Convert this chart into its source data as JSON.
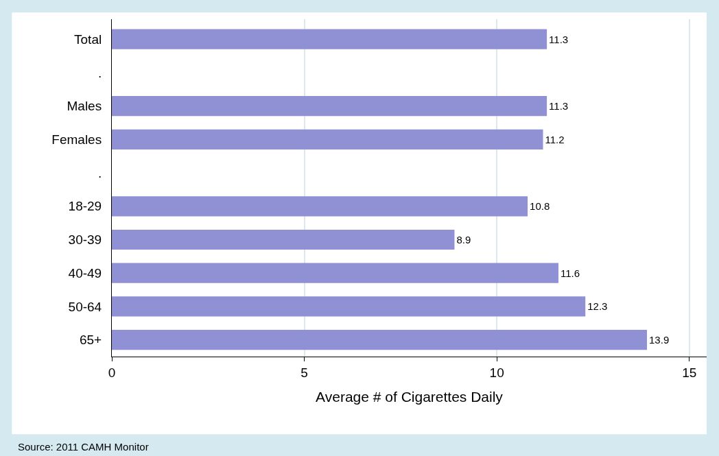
{
  "chart_data": {
    "type": "bar",
    "orientation": "horizontal",
    "categories": [
      "Total",
      ".",
      "Males",
      "Females",
      ".",
      "18-29",
      "30-39",
      "40-49",
      "50-64",
      "65+"
    ],
    "values": [
      11.3,
      null,
      11.3,
      11.2,
      null,
      10.8,
      8.9,
      11.6,
      12.3,
      13.9
    ],
    "color": "#9090d4",
    "data_labels": true,
    "xlabel": "Average # of Cigarettes Daily",
    "xlim": [
      0,
      15.45
    ],
    "xticks": [
      0,
      5,
      10,
      15
    ],
    "grid": "x",
    "annotations": [
      "Source: 2011 CAMH Monitor"
    ]
  }
}
